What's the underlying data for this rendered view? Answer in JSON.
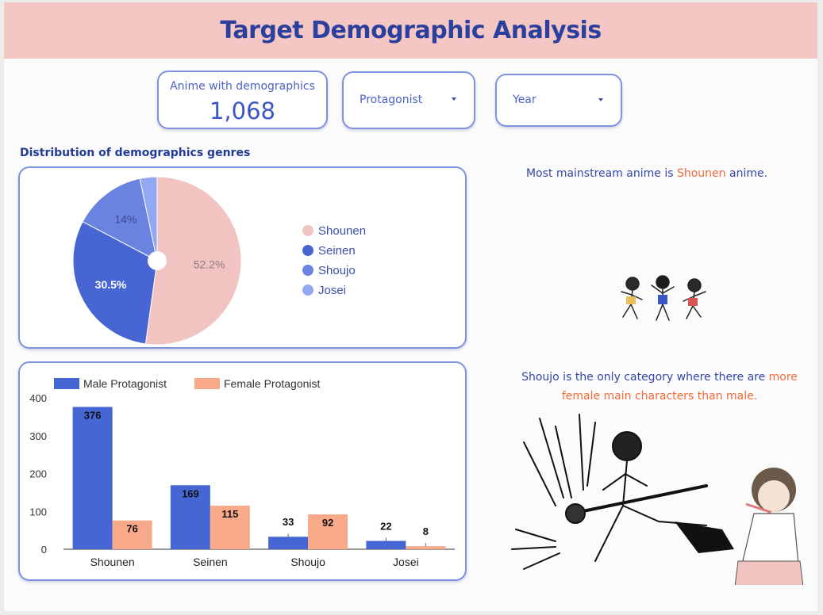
{
  "header": {
    "title": "Target Demographic Analysis"
  },
  "kpi": {
    "label": "Anime with demographics",
    "value": "1,068"
  },
  "filters": [
    {
      "label": "Protagonist"
    },
    {
      "label": "Year"
    }
  ],
  "section_title": "Distribution of demographics genres",
  "insights": {
    "first": {
      "before": "Most mainstream anime is ",
      "highlight": "Shounen",
      "after": " anime."
    },
    "second": {
      "before": "Shoujo is the only category where there are ",
      "highlight": "more female main characters than male."
    }
  },
  "colors": {
    "shounen": "#f2c4c1",
    "seinen": "#4765d3",
    "shoujo": "#6a82e0",
    "josei": "#92a8f2",
    "male": "#4667d3",
    "female": "#f8a98a",
    "accent": "#f26b3a"
  },
  "chart_data": [
    {
      "type": "pie",
      "title": "Distribution of demographics genres",
      "labels": [
        "Shounen",
        "Seinen",
        "Shoujo",
        "Josei"
      ],
      "values": [
        52.2,
        30.5,
        14.0,
        3.3
      ],
      "slice_labels": [
        "52.2%",
        "30.5%",
        "14%",
        ""
      ],
      "legend_position": "right",
      "donut_hole": true
    },
    {
      "type": "bar",
      "categories": [
        "Shounen",
        "Seinen",
        "Shoujo",
        "Josei"
      ],
      "series": [
        {
          "name": "Male Protagonist",
          "values": [
            376,
            169,
            33,
            22
          ]
        },
        {
          "name": "Female Protagonist",
          "values": [
            76,
            115,
            92,
            8
          ]
        }
      ],
      "ylim": [
        0,
        400
      ],
      "yticks": [
        0,
        100,
        200,
        300,
        400
      ],
      "legend_position": "top",
      "grid": false
    }
  ]
}
